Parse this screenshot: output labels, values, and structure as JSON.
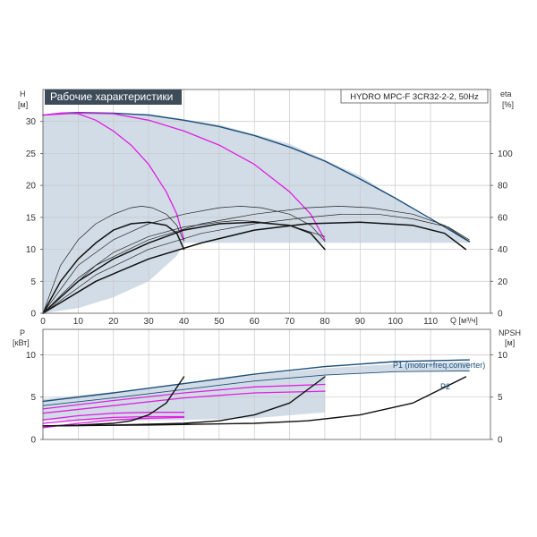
{
  "chart_data": [
    {
      "type": "line",
      "panel": "head",
      "title": "Рабочие характеристики",
      "product_label": "HYDRO MPC-F 3CR32-2-2, 50Hz",
      "xlabel": "Q [м³/ч]",
      "ylabel_left": "H",
      "ylabel_left_unit": "[м]",
      "ylabel_right": "eta",
      "ylabel_right_unit": "[%]",
      "xlim": [
        0,
        127
      ],
      "ylim_left": [
        0,
        35
      ],
      "ylim_right": [
        0,
        140
      ],
      "x_ticks": [
        0,
        10,
        20,
        30,
        40,
        50,
        60,
        70,
        80,
        90,
        100,
        110
      ],
      "y_ticks_left": [
        0,
        5,
        10,
        15,
        20,
        25,
        30
      ],
      "y_ticks_right": [
        0,
        20,
        40,
        60,
        80,
        100
      ],
      "grid": true,
      "operating_area": [
        [
          0,
          31
        ],
        [
          10,
          31.3
        ],
        [
          30,
          31.2
        ],
        [
          50,
          29.5
        ],
        [
          70,
          26.5
        ],
        [
          90,
          21.5
        ],
        [
          110,
          14.5
        ],
        [
          121,
          11.2
        ],
        [
          121,
          11
        ],
        [
          40,
          11
        ],
        [
          38,
          9
        ],
        [
          30,
          5
        ],
        [
          20,
          2.5
        ],
        [
          10,
          0.8
        ],
        [
          0,
          0
        ]
      ],
      "series": [
        {
          "role": "envelope_H",
          "color": "#1d4f7a",
          "points": [
            [
              0,
              31
            ],
            [
              5,
              31.3
            ],
            [
              10,
              31.4
            ],
            [
              20,
              31.3
            ],
            [
              30,
              31
            ],
            [
              40,
              30.2
            ],
            [
              50,
              29.2
            ],
            [
              60,
              27.8
            ],
            [
              70,
              26
            ],
            [
              80,
              23.8
            ],
            [
              90,
              21
            ],
            [
              100,
              18
            ],
            [
              110,
              14.8
            ],
            [
              121,
              11.2
            ]
          ]
        },
        {
          "role": "H_one_pump",
          "color": "#e020e0",
          "points": [
            [
              0,
              31
            ],
            [
              5,
              31.3
            ],
            [
              10,
              31.2
            ],
            [
              15,
              30.2
            ],
            [
              20,
              28.5
            ],
            [
              25,
              26.3
            ],
            [
              30,
              23.3
            ],
            [
              35,
              19
            ],
            [
              38,
              15.5
            ],
            [
              40,
              11.5
            ]
          ]
        },
        {
          "role": "H_two_pumps",
          "color": "#e020e0",
          "points": [
            [
              0,
              31
            ],
            [
              10,
              31.3
            ],
            [
              20,
              31.2
            ],
            [
              30,
              30.2
            ],
            [
              40,
              28.5
            ],
            [
              50,
              26.3
            ],
            [
              60,
              23.3
            ],
            [
              70,
              19
            ],
            [
              76,
              15.5
            ],
            [
              80,
              11.5
            ]
          ]
        },
        {
          "role": "eta_one_pump",
          "color": "#111111",
          "points": [
            [
              0,
              0
            ],
            [
              5,
              20
            ],
            [
              10,
              34
            ],
            [
              15,
              44
            ],
            [
              20,
              52
            ],
            [
              25,
              56
            ],
            [
              30,
              57
            ],
            [
              35,
              55
            ],
            [
              38,
              50
            ],
            [
              40,
              40
            ]
          ]
        },
        {
          "role": "eta_two_pumps",
          "color": "#111111",
          "points": [
            [
              0,
              0
            ],
            [
              10,
              20
            ],
            [
              20,
              34
            ],
            [
              30,
              44
            ],
            [
              40,
              52
            ],
            [
              50,
              56
            ],
            [
              60,
              57
            ],
            [
              70,
              55
            ],
            [
              76,
              50
            ],
            [
              80,
              40
            ]
          ]
        },
        {
          "role": "eta_three_pumps",
          "color": "#111111",
          "points": [
            [
              0,
              0
            ],
            [
              15,
              20
            ],
            [
              30,
              34
            ],
            [
              45,
              44
            ],
            [
              60,
              52
            ],
            [
              75,
              56
            ],
            [
              90,
              57
            ],
            [
              105,
              55
            ],
            [
              114,
              50
            ],
            [
              120,
              40
            ]
          ]
        },
        {
          "role": "eta_thin_1",
          "color": "#222222",
          "points": [
            [
              0,
              0
            ],
            [
              5,
              30
            ],
            [
              10,
              46
            ],
            [
              15,
              56
            ],
            [
              20,
              62
            ],
            [
              25,
              66
            ],
            [
              28,
              67
            ],
            [
              31,
              66
            ],
            [
              35,
              62
            ],
            [
              38,
              55
            ],
            [
              40,
              45
            ]
          ]
        },
        {
          "role": "eta_thin_2",
          "color": "#222222",
          "points": [
            [
              0,
              0
            ],
            [
              10,
              30
            ],
            [
              20,
              46
            ],
            [
              30,
              56
            ],
            [
              40,
              62
            ],
            [
              50,
              66
            ],
            [
              56,
              67
            ],
            [
              62,
              66
            ],
            [
              70,
              62
            ],
            [
              76,
              55
            ],
            [
              80,
              45
            ]
          ]
        },
        {
          "role": "eta_thin_3",
          "color": "#222222",
          "points": [
            [
              0,
              0
            ],
            [
              15,
              30
            ],
            [
              30,
              46
            ],
            [
              45,
              56
            ],
            [
              60,
              62
            ],
            [
              75,
              66
            ],
            [
              84,
              67
            ],
            [
              93,
              66
            ],
            [
              105,
              62
            ],
            [
              114,
              55
            ],
            [
              121,
              45
            ]
          ]
        },
        {
          "role": "eta_thin_4",
          "color": "#222222",
          "points": [
            [
              0,
              0
            ],
            [
              10,
              22
            ],
            [
              20,
              38
            ],
            [
              30,
              48
            ],
            [
              40,
              54
            ],
            [
              50,
              57
            ],
            [
              55,
              58
            ],
            [
              60,
              57.5
            ],
            [
              70,
              55
            ],
            [
              80,
              48
            ]
          ]
        },
        {
          "role": "eta_thin_5",
          "color": "#222222",
          "points": [
            [
              0,
              0
            ],
            [
              15,
              24
            ],
            [
              30,
              40
            ],
            [
              45,
              50
            ],
            [
              60,
              56
            ],
            [
              75,
              60
            ],
            [
              85,
              62
            ],
            [
              95,
              62
            ],
            [
              105,
              59
            ],
            [
              115,
              54
            ],
            [
              121,
              46
            ]
          ]
        }
      ]
    },
    {
      "type": "line",
      "panel": "power",
      "ylabel_left": "P",
      "ylabel_left_unit": "[кВт]",
      "ylabel_right": "NPSH",
      "ylabel_right_unit": "[м]",
      "xlim": [
        0,
        127
      ],
      "ylim_left": [
        0,
        13
      ],
      "ylim_right": [
        0,
        13
      ],
      "y_ticks_left": [
        0,
        5,
        10
      ],
      "y_ticks_right": [
        0,
        5,
        10
      ],
      "grid": true,
      "labels": {
        "p1": "P1 (motor+freq.converter)",
        "p2": "P2"
      },
      "operating_area": [
        [
          0,
          2.3
        ],
        [
          0,
          4.8
        ],
        [
          20,
          5.6
        ],
        [
          40,
          6.6
        ],
        [
          60,
          7.6
        ],
        [
          80,
          8.4
        ],
        [
          100,
          8.9
        ],
        [
          121,
          9.2
        ],
        [
          121,
          8
        ],
        [
          100,
          8
        ],
        [
          80,
          7.6
        ],
        [
          80,
          3.2
        ],
        [
          60,
          2.5
        ],
        [
          40,
          2.3
        ],
        [
          20,
          2.2
        ],
        [
          0,
          2.3
        ]
      ],
      "series": [
        {
          "role": "P1_total",
          "color": "#1d4f7a",
          "points": [
            [
              0,
              4.5
            ],
            [
              20,
              5.5
            ],
            [
              40,
              6.6
            ],
            [
              60,
              7.7
            ],
            [
              80,
              8.6
            ],
            [
              100,
              9.2
            ],
            [
              121,
              9.4
            ]
          ]
        },
        {
          "role": "P2_total",
          "color": "#1d4f7a",
          "points": [
            [
              0,
              4.0
            ],
            [
              20,
              4.9
            ],
            [
              40,
              5.9
            ],
            [
              60,
              6.9
            ],
            [
              80,
              7.6
            ],
            [
              100,
              8.0
            ],
            [
              121,
              8.1
            ]
          ]
        },
        {
          "role": "P1_two_pumps",
          "color": "#e020e0",
          "points": [
            [
              0,
              3.6
            ],
            [
              20,
              4.6
            ],
            [
              40,
              5.5
            ],
            [
              60,
              6.2
            ],
            [
              80,
              6.5
            ]
          ]
        },
        {
          "role": "P2_two_pumps",
          "color": "#e020e0",
          "points": [
            [
              0,
              3.1
            ],
            [
              20,
              4.0
            ],
            [
              40,
              4.9
            ],
            [
              60,
              5.5
            ],
            [
              80,
              5.7
            ]
          ]
        },
        {
          "role": "P1_one_pump",
          "color": "#e020e0",
          "points": [
            [
              0,
              2.3
            ],
            [
              10,
              2.8
            ],
            [
              20,
              3.1
            ],
            [
              30,
              3.2
            ],
            [
              40,
              3.2
            ]
          ]
        },
        {
          "role": "P2_one_pump",
          "color": "#e020e0",
          "points": [
            [
              0,
              1.9
            ],
            [
              10,
              2.3
            ],
            [
              20,
              2.6
            ],
            [
              30,
              2.7
            ],
            [
              40,
              2.7
            ]
          ]
        },
        {
          "role": "P1_low",
          "color": "#e020e0",
          "points": [
            [
              0,
              1.4
            ],
            [
              10,
              1.9
            ],
            [
              20,
              2.3
            ],
            [
              30,
              2.5
            ],
            [
              40,
              2.6
            ]
          ]
        },
        {
          "role": "NPSH_one_pump",
          "color": "#111111",
          "points": [
            [
              0,
              1.6
            ],
            [
              10,
              1.7
            ],
            [
              20,
              1.9
            ],
            [
              25,
              2.2
            ],
            [
              30,
              2.9
            ],
            [
              35,
              4.3
            ],
            [
              40,
              7.4
            ]
          ]
        },
        {
          "role": "NPSH_two_pumps",
          "color": "#111111",
          "points": [
            [
              0,
              1.6
            ],
            [
              20,
              1.7
            ],
            [
              40,
              1.9
            ],
            [
              50,
              2.2
            ],
            [
              60,
              2.9
            ],
            [
              70,
              4.3
            ],
            [
              80,
              7.4
            ]
          ]
        },
        {
          "role": "NPSH_three_pumps",
          "color": "#111111",
          "points": [
            [
              0,
              1.6
            ],
            [
              30,
              1.7
            ],
            [
              60,
              1.9
            ],
            [
              75,
              2.2
            ],
            [
              90,
              2.9
            ],
            [
              105,
              4.3
            ],
            [
              120,
              7.4
            ]
          ]
        }
      ]
    }
  ]
}
